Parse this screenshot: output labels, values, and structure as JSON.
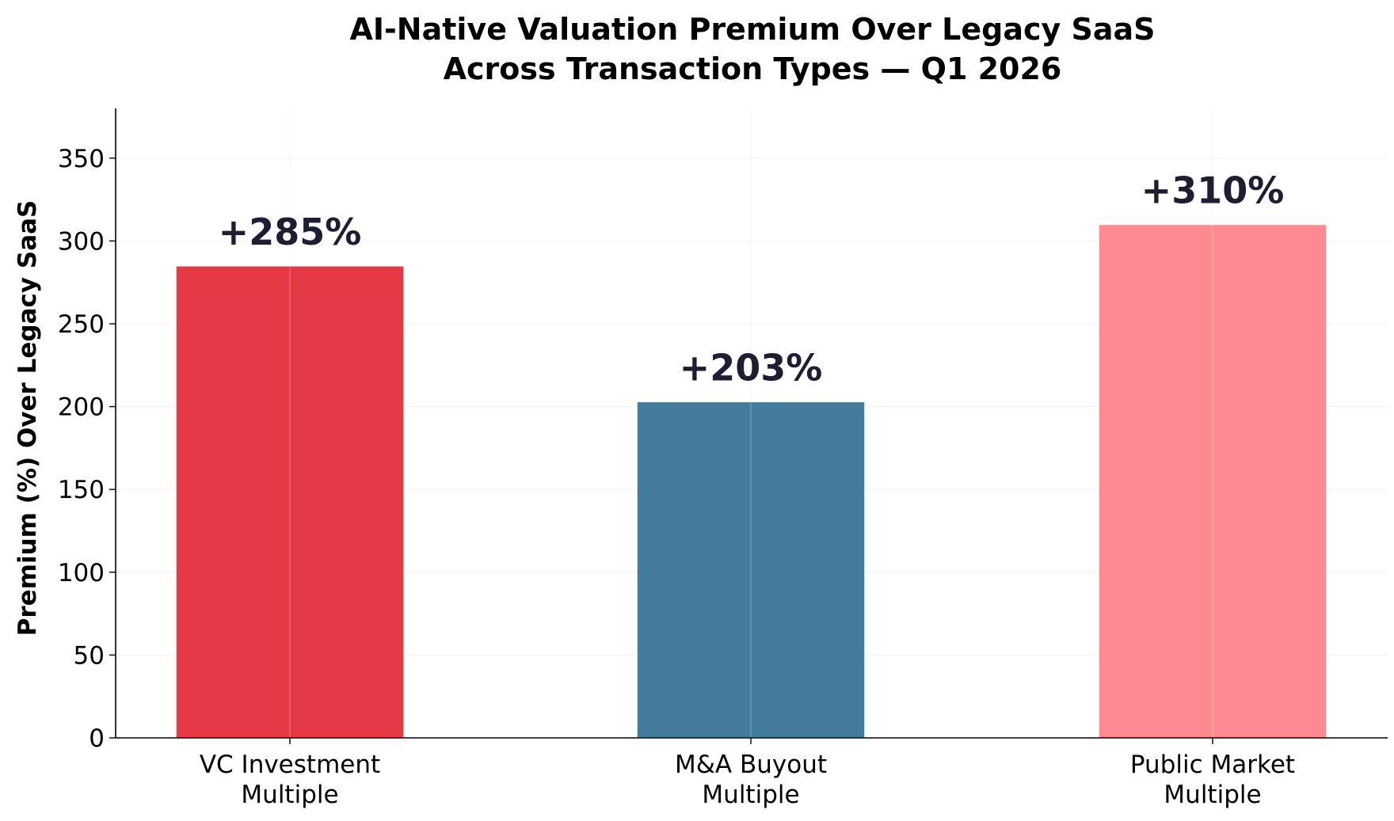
{
  "chart_data": {
    "type": "bar",
    "title_lines": [
      "AI-Native Valuation Premium Over Legacy SaaS",
      "Across Transaction Types — Q1 2026"
    ],
    "xlabel": "",
    "ylabel": "Premium (%) Over Legacy SaaS",
    "categories": [
      [
        "VC Investment",
        "Multiple"
      ],
      [
        "M&A Buyout",
        "Multiple"
      ],
      [
        "Public Market",
        "Multiple"
      ]
    ],
    "values": [
      285,
      203,
      310
    ],
    "data_labels": [
      "+285%",
      "+203%",
      "+310%"
    ],
    "colors": [
      "#e63946",
      "#457b9d",
      "#ff8a92"
    ],
    "ylim": [
      0,
      380
    ],
    "yticks": [
      0,
      50,
      100,
      150,
      200,
      250,
      300,
      350
    ],
    "grid": true,
    "legend": "none"
  }
}
